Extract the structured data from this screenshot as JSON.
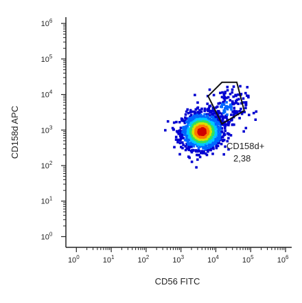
{
  "chart_data": {
    "type": "scatter",
    "subtype": "flow-cytometry-density-dot-plot",
    "xlabel": "CD56 FITC",
    "ylabel": "CD158d APC",
    "x_scale": "log",
    "y_scale": "log",
    "xlim": [
      0.5,
      1500000
    ],
    "ylim": [
      0.5,
      1500000
    ],
    "x_ticks": [
      "10^0",
      "10^1",
      "10^2",
      "10^3",
      "10^4",
      "10^5",
      "10^6"
    ],
    "y_ticks": [
      "10^0",
      "10^1",
      "10^2",
      "10^3",
      "10^4",
      "10^5",
      "10^6"
    ],
    "tick_base": "10",
    "tick_exponents": [
      "0",
      "1",
      "2",
      "3",
      "4",
      "5",
      "6"
    ],
    "grid": false,
    "populations": [
      {
        "name": "main",
        "center": [
          4000,
          900
        ],
        "spread_decades": [
          0.28,
          0.25
        ],
        "density": "high"
      },
      {
        "name": "upper",
        "center": [
          20000,
          4000
        ],
        "spread_decades": [
          0.3,
          0.3
        ],
        "density": "low"
      }
    ],
    "gate": {
      "label": "CD158d+",
      "value": "2,38",
      "shape": "pentagon",
      "vertices": [
        [
          6000,
          9000
        ],
        [
          15000,
          22000
        ],
        [
          40000,
          22000
        ],
        [
          65000,
          3500
        ],
        [
          15000,
          1500
        ]
      ]
    },
    "colormap": [
      "#0000d0",
      "#0066ff",
      "#00c8ff",
      "#30e060",
      "#d8e000",
      "#ff7800",
      "#d00000"
    ]
  }
}
